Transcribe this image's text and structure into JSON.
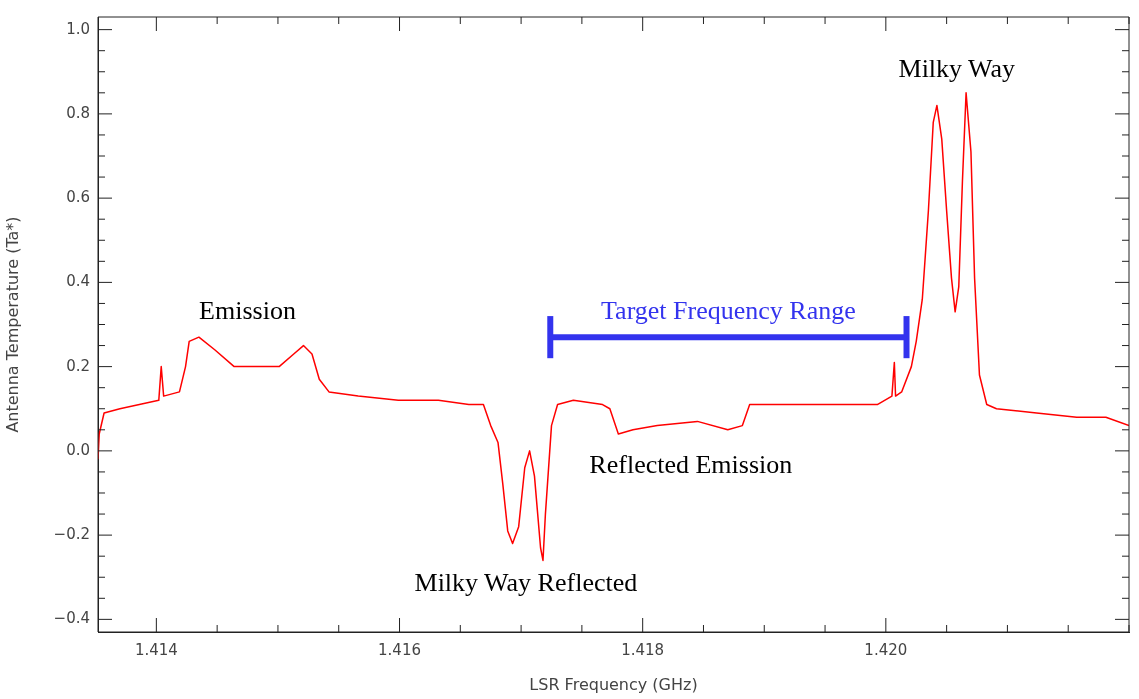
{
  "chart_data": {
    "type": "line",
    "xlabel": "LSR Frequency (GHz)",
    "ylabel": "Antenna Temperature (Ta*)",
    "xlim": [
      1.41352,
      1.422
    ],
    "ylim": [
      -0.43,
      1.03
    ],
    "xticks": [
      1.414,
      {
        "value": 1.4145,
        "label": null
      },
      {
        "value": 1.415,
        "label": null
      },
      {
        "value": 1.4155,
        "label": null
      },
      1.416,
      {
        "value": 1.4165,
        "label": null
      },
      {
        "value": 1.417,
        "label": null
      },
      {
        "value": 1.4175,
        "label": null
      },
      1.418,
      {
        "value": 1.4185,
        "label": null
      },
      {
        "value": 1.419,
        "label": null
      },
      {
        "value": 1.4195,
        "label": null
      },
      {
        "value": 1.42,
        "label": "1.420"
      },
      {
        "value": 1.4205,
        "label": null
      },
      {
        "value": 1.421,
        "label": null
      },
      {
        "value": 1.4215,
        "label": null
      },
      {
        "value": 1.422,
        "label": null
      }
    ],
    "yticks": [
      {
        "value": -0.4,
        "label": "−0.4"
      },
      {
        "value": -0.35,
        "label": null
      },
      {
        "value": -0.3,
        "label": null
      },
      {
        "value": -0.25,
        "label": null
      },
      {
        "value": -0.2,
        "label": "−0.2"
      },
      {
        "value": -0.15,
        "label": null
      },
      {
        "value": -0.1,
        "label": null
      },
      {
        "value": -0.05,
        "label": null
      },
      {
        "value": 0,
        "label": "0.0"
      },
      {
        "value": 0.05,
        "label": null
      },
      {
        "value": 0.1,
        "label": null
      },
      {
        "value": 0.15,
        "label": null
      },
      {
        "value": 0.2,
        "label": "0.2"
      },
      {
        "value": 0.25,
        "label": null
      },
      {
        "value": 0.3,
        "label": null
      },
      {
        "value": 0.35,
        "label": null
      },
      {
        "value": 0.4,
        "label": "0.4"
      },
      {
        "value": 0.45,
        "label": null
      },
      {
        "value": 0.5,
        "label": null
      },
      {
        "value": 0.55,
        "label": null
      },
      {
        "value": 0.6,
        "label": "0.6"
      },
      {
        "value": 0.65,
        "label": null
      },
      {
        "value": 0.7,
        "label": null
      },
      {
        "value": 0.75,
        "label": null
      },
      {
        "value": 0.8,
        "label": "0.8"
      },
      {
        "value": 0.85,
        "label": null
      },
      {
        "value": 0.9,
        "label": null
      },
      {
        "value": 0.95,
        "label": null
      },
      {
        "value": 1,
        "label": "1.0"
      }
    ],
    "grid": false,
    "legend": false,
    "marker": "none",
    "line_style": "solid",
    "x": [
      1.41352,
      1.41353,
      1.41357,
      1.4137,
      1.41386,
      1.41402,
      1.41404,
      1.41406,
      1.41419,
      1.41424,
      1.41427,
      1.41435,
      1.41448,
      1.41464,
      1.41484,
      1.41501,
      1.41513,
      1.41521,
      1.41528,
      1.41534,
      1.41542,
      1.41566,
      1.41599,
      1.41632,
      1.41657,
      1.41669,
      1.41675,
      1.41681,
      1.41685,
      1.41689,
      1.41693,
      1.41698,
      1.41703,
      1.41707,
      1.41711,
      1.41716,
      1.41718,
      1.4172,
      1.41725,
      1.4173,
      1.41743,
      1.41767,
      1.41773,
      1.4178,
      1.41792,
      1.41812,
      1.41845,
      1.4187,
      1.41882,
      1.41888,
      1.41911,
      1.41952,
      1.41993,
      1.42005,
      1.42007,
      1.42008,
      1.42013,
      1.42021,
      1.42025,
      1.4203,
      1.42035,
      1.42039,
      1.42042,
      1.42046,
      1.4205,
      1.42054,
      1.42057,
      1.4206,
      1.42063,
      1.42066,
      1.4207,
      1.42073,
      1.42077,
      1.42083,
      1.42091,
      1.42124,
      1.42157,
      1.42181,
      1.422
    ],
    "series": [
      {
        "color": "#ff0000",
        "values": [
          -0.02,
          0.04,
          0.09,
          0.1,
          0.11,
          0.12,
          0.2,
          0.13,
          0.14,
          0.2,
          0.26,
          0.27,
          0.24,
          0.2,
          0.2,
          0.2,
          0.23,
          0.25,
          0.23,
          0.17,
          0.14,
          0.13,
          0.12,
          0.12,
          0.11,
          0.11,
          0.06,
          0.02,
          -0.08,
          -0.19,
          -0.22,
          -0.18,
          -0.04,
          0,
          -0.06,
          -0.23,
          -0.26,
          -0.15,
          0.06,
          0.11,
          0.12,
          0.11,
          0.1,
          0.04,
          0.05,
          0.06,
          0.07,
          0.05,
          0.06,
          0.11,
          0.11,
          0.11,
          0.11,
          0.13,
          0.21,
          0.13,
          0.14,
          0.2,
          0.26,
          0.36,
          0.57,
          0.78,
          0.82,
          0.74,
          0.57,
          0.41,
          0.33,
          0.39,
          0.64,
          0.85,
          0.71,
          0.41,
          0.18,
          0.11,
          0.1,
          0.09,
          0.08,
          0.08,
          0.06
        ]
      },
      {
        "name": "Target Frequency Range",
        "type": "line",
        "color": "#3333ee",
        "x": [
          1.41724,
          1.42017
        ],
        "values": [
          0.27,
          0.27
        ],
        "errors": [
          0.05,
          0.05
        ]
      }
    ],
    "annotations": [
      "Emission",
      "Milky Way",
      "Reflected Emission",
      "Milky Way Reflected"
    ]
  }
}
